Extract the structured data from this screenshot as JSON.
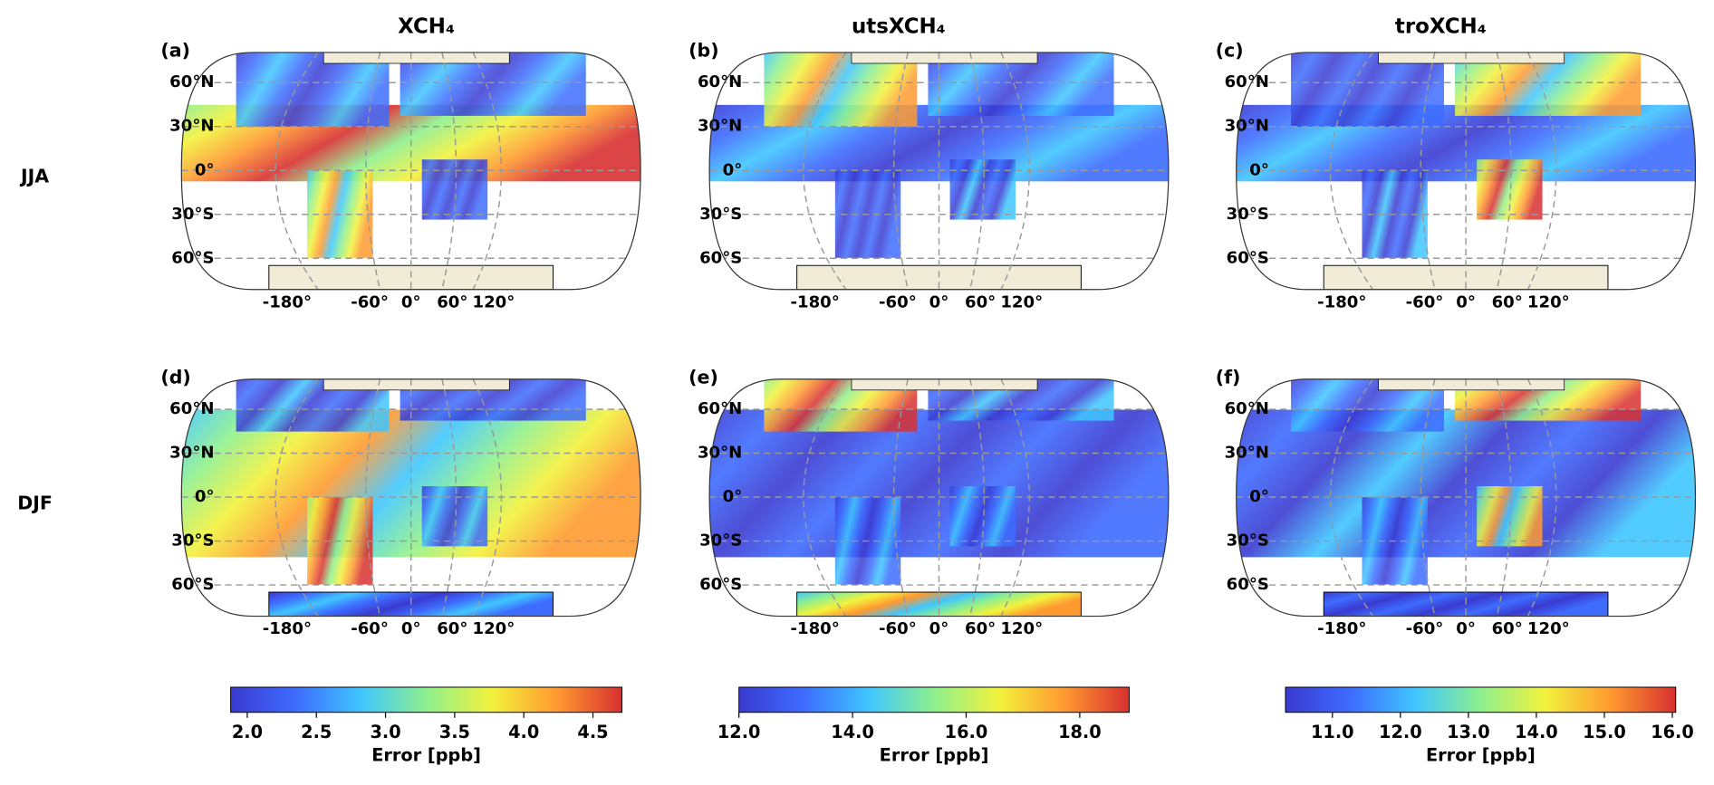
{
  "columns": [
    {
      "title": "XCH₄",
      "colorbar": {
        "label": "Error [ppb]",
        "lim": [
          1.88,
          4.71
        ],
        "ticks": [
          {
            "value": 2,
            "label": "2.0"
          },
          {
            "value": 2.5,
            "label": "2.5"
          },
          {
            "value": 3,
            "label": "3.0"
          },
          {
            "value": 3.5,
            "label": "3.5"
          },
          {
            "value": 4,
            "label": "4.0"
          },
          {
            "value": 4.5,
            "label": "4.5"
          }
        ]
      }
    },
    {
      "title": "utsXCH₄",
      "colorbar": {
        "label": "Error [ppb]",
        "lim": [
          12.0,
          18.87
        ],
        "ticks": [
          {
            "value": 12,
            "label": "12.0"
          },
          {
            "value": 14,
            "label": "14.0"
          },
          {
            "value": 16,
            "label": "16.0"
          },
          {
            "value": 18,
            "label": "18.0"
          }
        ]
      }
    },
    {
      "title": "troXCH₄",
      "colorbar": {
        "label": "Error [ppb]",
        "lim": [
          10.31,
          16.05
        ],
        "ticks": [
          {
            "value": 11,
            "label": "11.0"
          },
          {
            "value": 12,
            "label": "12.0"
          },
          {
            "value": 13,
            "label": "13.0"
          },
          {
            "value": 14,
            "label": "14.0"
          },
          {
            "value": 15,
            "label": "15.0"
          },
          {
            "value": 16,
            "label": "16.0"
          }
        ]
      }
    }
  ],
  "rows": [
    "JJA",
    "DJF"
  ],
  "panels": [
    "(a)",
    "(b)",
    "(c)",
    "(d)",
    "(e)",
    "(f)"
  ],
  "map_axes": {
    "lat_ticks": [
      {
        "value": 60,
        "label": "60°N"
      },
      {
        "value": 30,
        "label": "30°N"
      },
      {
        "value": 0,
        "label": "0°"
      },
      {
        "value": -30,
        "label": "30°S"
      },
      {
        "value": -60,
        "label": "60°S"
      }
    ],
    "lon_ticks": [
      {
        "value": -180,
        "label": "-180°"
      },
      {
        "value": -60,
        "label": "-60°"
      },
      {
        "value": 0,
        "label": "0°"
      },
      {
        "value": 60,
        "label": "60°"
      },
      {
        "value": 120,
        "label": "120°"
      }
    ]
  },
  "colormap": [
    "#3a3ad0",
    "#3e6cff",
    "#3fc6ff",
    "#8ef08e",
    "#f2f23c",
    "#ff9a30",
    "#d83030"
  ]
}
